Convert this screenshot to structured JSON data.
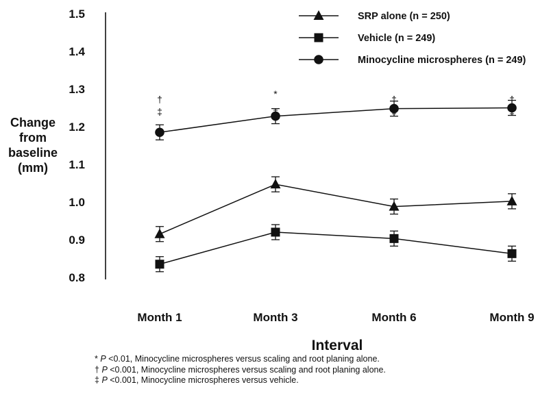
{
  "chart_data": {
    "type": "line",
    "ylabel_lines": [
      "Change",
      "from",
      "baseline",
      "(mm)"
    ],
    "xlabel": "Interval",
    "categories": [
      "Month 1",
      "Month 3",
      "Month 6",
      "Month 9"
    ],
    "ylim": [
      0.8,
      1.5
    ],
    "yticks": [
      "0.8",
      "0.9",
      "1.0",
      "1.1",
      "1.2",
      "1.3",
      "1.4",
      "1.5"
    ],
    "grid": false,
    "legend_position": "top-right",
    "series": [
      {
        "name": "SRP alone (n = 250)",
        "marker": "triangle",
        "values": [
          0.915,
          1.047,
          0.988,
          1.002
        ],
        "errors": [
          0.02,
          0.02,
          0.02,
          0.02
        ]
      },
      {
        "name": "Vehicle (n = 249)",
        "marker": "square",
        "values": [
          0.835,
          0.92,
          0.903,
          0.863
        ],
        "errors": [
          0.02,
          0.02,
          0.02,
          0.02
        ]
      },
      {
        "name": "Minocycline microspheres (n = 249)",
        "marker": "circle",
        "values": [
          1.185,
          1.228,
          1.248,
          1.25
        ],
        "errors": [
          0.02,
          0.02,
          0.02,
          0.02
        ]
      }
    ],
    "annotations": [
      {
        "category": "Month 1",
        "symbols": [
          "†",
          "‡"
        ]
      },
      {
        "category": "Month 3",
        "symbols": [
          "*",
          "‡"
        ]
      },
      {
        "category": "Month 6",
        "symbols": [
          "†",
          "‡"
        ]
      },
      {
        "category": "Month 9",
        "symbols": [
          "†",
          "‡"
        ]
      }
    ]
  },
  "footnotes": [
    {
      "symbol": "*",
      "p": "P",
      "text": " <0.01, Minocycline microspheres versus scaling and root planing alone."
    },
    {
      "symbol": "†",
      "p": "P",
      "text": " <0.001, Minocycline microspheres versus scaling and root planing alone."
    },
    {
      "symbol": "‡",
      "p": "P",
      "text": " <0.001, Minocycline microspheres versus vehicle."
    }
  ]
}
